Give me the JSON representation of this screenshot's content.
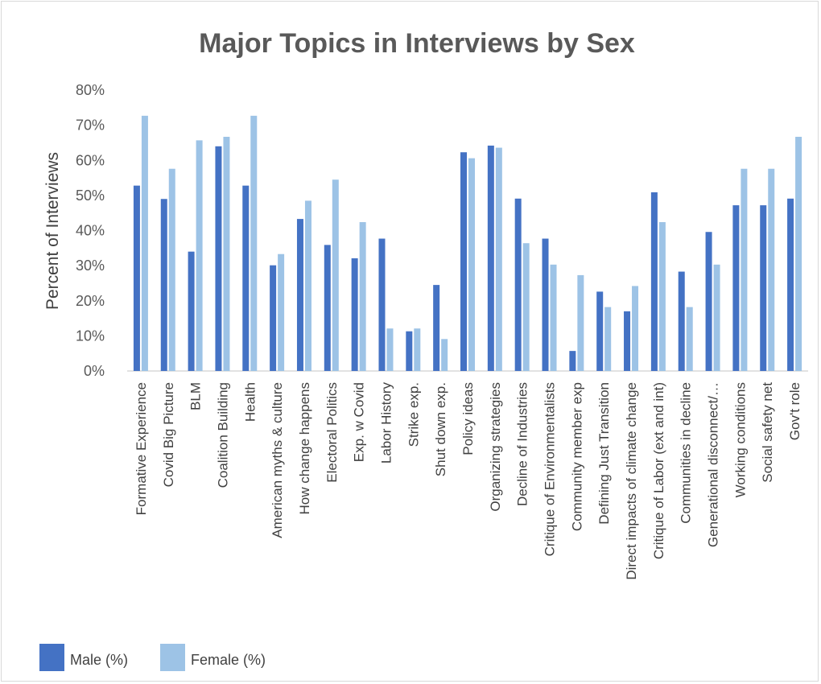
{
  "chart_data": {
    "type": "bar",
    "title": "Major Topics in Interviews by Sex",
    "ylabel": "Percent of Interviews",
    "xlabel": "",
    "ylim": [
      0,
      80
    ],
    "yticks": [
      "0%",
      "10%",
      "20%",
      "30%",
      "40%",
      "50%",
      "60%",
      "70%",
      "80%"
    ],
    "categories": [
      "Formative Experience",
      "Covid Big Picture",
      "BLM",
      "Coalition Building",
      "Health",
      "American myths & culture",
      "How change happens",
      "Electoral Politics",
      "Exp. w Covid",
      "Labor History",
      "Strike exp.",
      "Shut down exp.",
      "Policy ideas",
      "Organizing strategies",
      "Decline of Industries",
      "Critique of Environmentalists",
      "Community member exp",
      "Defining Just Transition",
      "Direct impacts of climate change",
      "Critique of Labor (ext and int)",
      "Communities in decline",
      "Generational disconnect/…",
      "Working conditions",
      "Social safety net",
      "Gov't role"
    ],
    "series": [
      {
        "name": "Male (%)",
        "color": "#4472c4",
        "values": [
          52.8,
          49,
          34,
          64,
          52.8,
          30.1,
          43.3,
          35.9,
          32.1,
          37.7,
          11.3,
          24.5,
          62.3,
          64.2,
          49.1,
          37.7,
          5.7,
          22.6,
          17,
          50.9,
          28.3,
          39.6,
          47.2,
          47.2,
          49.1
        ]
      },
      {
        "name": "Female (%)",
        "color": "#9dc3e6",
        "values": [
          72.7,
          57.6,
          65.7,
          66.7,
          72.7,
          33.3,
          48.5,
          54.5,
          42.4,
          12.1,
          12.1,
          9.1,
          60.6,
          63.6,
          36.4,
          30.3,
          27.3,
          18.2,
          24.2,
          42.4,
          18.2,
          30.3,
          57.6,
          57.6,
          66.7
        ]
      }
    ],
    "legend_position": "bottom-left",
    "grid": false
  }
}
